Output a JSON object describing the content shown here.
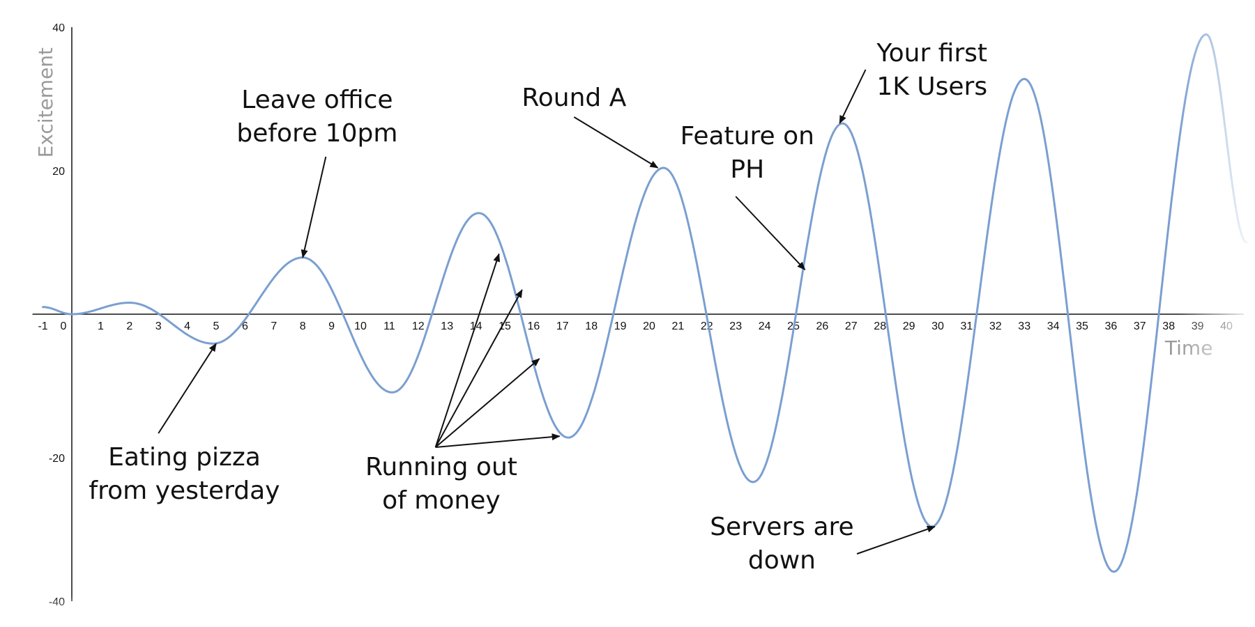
{
  "chart_data": {
    "type": "line",
    "xlabel": "Time",
    "ylabel": "Excitement",
    "xlim": [
      -1,
      40
    ],
    "ylim": [
      -40,
      40
    ],
    "x_ticks": [
      "-1",
      "0",
      "1",
      "2",
      "3",
      "4",
      "5",
      "6",
      "7",
      "8",
      "9",
      "10",
      "11",
      "12",
      "13",
      "14",
      "15",
      "16",
      "17",
      "18",
      "19",
      "20",
      "21",
      "22",
      "23",
      "24",
      "25",
      "26",
      "27",
      "28",
      "29",
      "30",
      "31",
      "32",
      "33",
      "34",
      "35",
      "36",
      "37",
      "38",
      "39",
      "40"
    ],
    "y_ticks": [
      "40",
      "20",
      "-20",
      "-40"
    ],
    "grid": false,
    "line_color": "#7a9fd0",
    "series": [
      {
        "x": [
          -1,
          0,
          2,
          4.9,
          8,
          11.1,
          14.1,
          17.2,
          20.5,
          23.6,
          26.7,
          29.8,
          33,
          36.1,
          39.3,
          40.7
        ],
        "y": [
          1,
          0,
          1.6,
          -4.1,
          7.9,
          -10.9,
          14.1,
          -17.2,
          20.4,
          -23.4,
          26.6,
          -29.6,
          32.8,
          -35.9,
          39,
          10
        ],
        "peaks": [
          {
            "x": 2.0,
            "y": 1.6
          },
          {
            "x": 4.9,
            "y": -4.1
          },
          {
            "x": 8.0,
            "y": 7.9
          },
          {
            "x": 11.1,
            "y": -10.9
          },
          {
            "x": 14.1,
            "y": 14.1
          },
          {
            "x": 17.2,
            "y": -17.2
          },
          {
            "x": 20.5,
            "y": 20.4
          },
          {
            "x": 23.6,
            "y": -23.4
          },
          {
            "x": 26.7,
            "y": 26.6
          },
          {
            "x": 29.8,
            "y": -29.6
          },
          {
            "x": 33.0,
            "y": 32.8
          },
          {
            "x": 36.1,
            "y": -35.9
          },
          {
            "x": 39.3,
            "y": 39.0
          }
        ]
      }
    ],
    "annotations": [
      {
        "lines": [
          "Leave office",
          "before 10pm"
        ],
        "point": {
          "x": 8.0,
          "y": 7.9
        }
      },
      {
        "lines": [
          "Round A"
        ],
        "point": {
          "x": 20.3,
          "y": 20.4
        }
      },
      {
        "lines": [
          "Your first",
          "1K Users"
        ],
        "point": {
          "x": 26.6,
          "y": 26.6
        }
      },
      {
        "lines": [
          "Feature on",
          "PH"
        ],
        "point": {
          "x": 25.4,
          "y": 6.2
        }
      },
      {
        "lines": [
          "Eating pizza",
          "from yesterday"
        ],
        "point": {
          "x": 5.0,
          "y": -4.1
        }
      },
      {
        "lines": [
          "Running out",
          "of money"
        ],
        "points": [
          {
            "x": 14.8,
            "y": 8.4
          },
          {
            "x": 15.6,
            "y": 3.4
          },
          {
            "x": 16.2,
            "y": -6.2
          },
          {
            "x": 16.9,
            "y": -17.0
          }
        ]
      },
      {
        "lines": [
          "Servers are",
          "down"
        ],
        "point": {
          "x": 29.9,
          "y": -29.6
        }
      }
    ]
  }
}
